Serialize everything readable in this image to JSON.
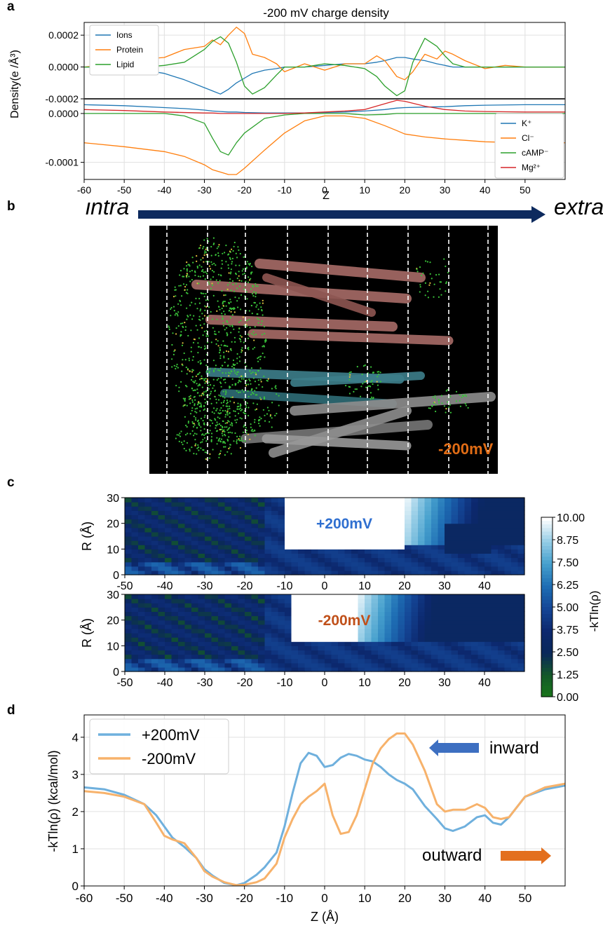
{
  "panel_labels": {
    "a": "a",
    "b": "b",
    "c": "c",
    "d": "d"
  },
  "colors": {
    "blue": "#1f77b4",
    "orange": "#ff7f0e",
    "green": "#2ca02c",
    "red": "#d62728",
    "light_blue": "#6fb0dd",
    "light_orange": "#f7b26b",
    "orange_text": "#e06c15",
    "navy": "#0d2a5e"
  },
  "panel_b": {
    "left_label": "intra",
    "right_label": "extra",
    "voltage_label": "-200mV",
    "image_description_icon": "protein-structure-image"
  },
  "chart_data": [
    {
      "type": "line",
      "id": "a-top",
      "title": "-200 mV charge density",
      "ylabel": "Density(e /Å³)",
      "xlabel": "Z",
      "xlim": [
        -60,
        60
      ],
      "ylim": [
        -0.0002,
        0.00028
      ],
      "yticks": [
        "0.0002",
        "0.0000",
        "-0.0002"
      ],
      "ytick_values": [
        0.0002,
        0.0,
        -0.0002
      ],
      "legend": "top-left",
      "x": [
        -60,
        -55,
        -50,
        -45,
        -40,
        -35,
        -30,
        -28,
        -26,
        -24,
        -22,
        -20,
        -18,
        -15,
        -12,
        -10,
        -5,
        0,
        5,
        10,
        13,
        15,
        18,
        20,
        22,
        25,
        28,
        30,
        32,
        35,
        40,
        45,
        50,
        55,
        60
      ],
      "series": [
        {
          "name": "Ions",
          "color": "#1f77b4",
          "values": [
            0,
            0,
            -1e-05,
            -2e-05,
            -4e-05,
            -8e-05,
            -0.00013,
            -0.00015,
            -0.00017,
            -0.00014,
            -0.0001,
            -7e-05,
            -4e-05,
            -2e-05,
            -1e-05,
            0,
            0,
            1e-05,
            2e-05,
            2e-05,
            3e-05,
            4e-05,
            6e-05,
            6e-05,
            5e-05,
            4e-05,
            2e-05,
            1e-05,
            0,
            0,
            0,
            0,
            0,
            0,
            0
          ]
        },
        {
          "name": "Protein",
          "color": "#ff7f0e",
          "values": [
            0,
            1e-05,
            2e-05,
            5e-05,
            6e-05,
            0.00011,
            0.00013,
            0.00017,
            0.00014,
            0.0002,
            0.00025,
            0.00021,
            8e-05,
            6e-05,
            2e-05,
            -3e-05,
            2e-05,
            -2e-05,
            2e-05,
            2e-05,
            7e-05,
            4e-05,
            -6e-05,
            -8e-05,
            -3e-05,
            8e-05,
            5e-05,
            0.0001,
            8e-05,
            4e-05,
            -1e-05,
            1e-05,
            0,
            0,
            0
          ]
        },
        {
          "name": "Lipid",
          "color": "#2ca02c",
          "values": [
            0,
            0,
            0,
            0,
            1e-05,
            3e-05,
            0.00011,
            0.00016,
            0.00019,
            0.00015,
            3e-05,
            -0.00012,
            -0.00017,
            -0.00013,
            -5e-05,
            0,
            0,
            2e-05,
            1e-05,
            -1e-05,
            -6e-05,
            -0.00012,
            -0.00018,
            -0.00015,
            3e-05,
            0.00018,
            0.00013,
            7e-05,
            2e-05,
            0,
            0,
            0,
            0,
            0,
            0
          ]
        }
      ]
    },
    {
      "type": "line",
      "id": "a-bottom",
      "xlabel": "Z",
      "xlim": [
        -60,
        60
      ],
      "ylim": [
        -0.000135,
        3e-05
      ],
      "yticks": [
        "0.0000",
        "-0.0001"
      ],
      "ytick_values": [
        0.0,
        -0.0001
      ],
      "xticks": [
        -60,
        -50,
        -40,
        -30,
        -20,
        -10,
        0,
        10,
        20,
        30,
        40,
        50
      ],
      "legend": "bottom-right",
      "x": [
        -60,
        -50,
        -40,
        -35,
        -30,
        -28,
        -26,
        -24,
        -22,
        -20,
        -15,
        -10,
        -5,
        0,
        5,
        10,
        15,
        18,
        20,
        25,
        30,
        35,
        40,
        50,
        60
      ],
      "series": [
        {
          "name": "K⁺",
          "color": "#1f77b4",
          "values": [
            1.8e-05,
            1.6e-05,
            1.2e-05,
            1e-05,
            7e-06,
            5e-06,
            4e-06,
            3e-06,
            3e-06,
            2e-06,
            1e-06,
            1e-06,
            1e-06,
            2e-06,
            3e-06,
            5e-06,
            8e-06,
            1.1e-05,
            1.2e-05,
            1.3e-05,
            1.4e-05,
            1.6e-05,
            1.7e-05,
            1.8e-05,
            1.8e-05
          ]
        },
        {
          "name": "Cl⁻",
          "color": "#ff7f0e",
          "values": [
            -6e-05,
            -6.8e-05,
            -7.8e-05,
            -8.8e-05,
            -0.000105,
            -0.000115,
            -0.00012,
            -0.000125,
            -0.000125,
            -0.000112,
            -7.5e-05,
            -4e-05,
            -1.5e-05,
            -5e-06,
            -5e-06,
            -1e-05,
            -2.5e-05,
            -3.5e-05,
            -4.2e-05,
            -4.8e-05,
            -5.2e-05,
            -5.5e-05,
            -5.8e-05,
            -6e-05,
            -6e-05
          ]
        },
        {
          "name": "cAMP⁻",
          "color": "#2ca02c",
          "values": [
            0,
            0,
            0,
            -5e-06,
            -2e-05,
            -5e-05,
            -7.8e-05,
            -8.5e-05,
            -6e-05,
            -4e-05,
            -1e-05,
            -3e-06,
            0,
            0,
            0,
            -3e-06,
            -2e-06,
            0,
            0,
            0,
            0,
            0,
            0,
            0,
            0
          ]
        },
        {
          "name": "Mg²⁺",
          "color": "#d62728",
          "values": [
            8e-06,
            6e-06,
            3e-06,
            2e-06,
            1e-06,
            1e-06,
            0,
            0,
            0,
            0,
            0,
            0,
            1e-06,
            3e-06,
            5e-06,
            8e-06,
            2e-05,
            2.7e-05,
            2.5e-05,
            1.5e-05,
            8e-06,
            5e-06,
            4e-06,
            3e-06,
            3e-06
          ]
        }
      ]
    },
    {
      "type": "heatmap",
      "id": "c-top",
      "annotation": "+200mV",
      "ylabel": "R (Å)",
      "xlim": [
        -50,
        50
      ],
      "ylim": [
        0,
        30
      ],
      "xticks": [
        -50,
        -40,
        -30,
        -20,
        -10,
        0,
        10,
        20,
        30,
        40
      ],
      "yticks": [
        0,
        10,
        20,
        30
      ],
      "white_region": {
        "z_range": [
          -10,
          20
        ],
        "r_range": [
          10,
          30
        ]
      },
      "colorbar": {
        "label": "-kTln(ρ)",
        "ticks": [
          "10.00",
          "8.75",
          "7.50",
          "6.25",
          "5.00",
          "3.75",
          "2.50",
          "1.25",
          "0.00"
        ],
        "range": [
          0,
          10
        ]
      }
    },
    {
      "type": "heatmap",
      "id": "c-bottom",
      "annotation": "-200mV",
      "ylabel": "R (Å)",
      "xlim": [
        -50,
        50
      ],
      "ylim": [
        0,
        30
      ],
      "xticks": [
        -50,
        -40,
        -30,
        -20,
        -10,
        0,
        10,
        20,
        30,
        40
      ],
      "yticks": [
        0,
        10,
        20,
        30
      ],
      "white_region": {
        "z_range": [
          -8,
          8
        ],
        "r_range": [
          12,
          30
        ]
      }
    },
    {
      "type": "line",
      "id": "d",
      "xlabel": "Z (Å)",
      "ylabel": "-kTln(ρ) (kcal/mol)",
      "xlim": [
        -60,
        60
      ],
      "ylim": [
        0,
        4.6
      ],
      "xticks": [
        -60,
        -50,
        -40,
        -30,
        -20,
        -10,
        0,
        10,
        20,
        30,
        40,
        50
      ],
      "yticks": [
        0,
        1,
        2,
        3,
        4
      ],
      "legend": "top-left",
      "grid": true,
      "annotations": {
        "inward": "inward",
        "outward": "outward"
      },
      "x": [
        -60,
        -55,
        -50,
        -45,
        -42,
        -40,
        -38,
        -35,
        -32,
        -30,
        -28,
        -25,
        -22,
        -20,
        -17,
        -15,
        -12,
        -10,
        -8,
        -6,
        -4,
        -2,
        0,
        2,
        4,
        6,
        8,
        10,
        12,
        14,
        16,
        18,
        20,
        22,
        25,
        28,
        30,
        32,
        35,
        38,
        40,
        42,
        44,
        46,
        50,
        55,
        60
      ],
      "series": [
        {
          "name": "+200mV",
          "color": "#6fb0dd",
          "values": [
            2.65,
            2.6,
            2.45,
            2.2,
            1.9,
            1.6,
            1.3,
            1.05,
            0.75,
            0.45,
            0.28,
            0.08,
            0.02,
            0.08,
            0.3,
            0.5,
            0.9,
            1.6,
            2.5,
            3.3,
            3.58,
            3.5,
            3.2,
            3.25,
            3.45,
            3.55,
            3.5,
            3.4,
            3.35,
            3.2,
            3.0,
            2.85,
            2.75,
            2.6,
            2.15,
            1.8,
            1.55,
            1.48,
            1.6,
            1.85,
            1.9,
            1.7,
            1.65,
            1.85,
            2.4,
            2.6,
            2.7
          ]
        },
        {
          "name": "-200mV",
          "color": "#f7b26b",
          "values": [
            2.55,
            2.5,
            2.4,
            2.2,
            1.7,
            1.35,
            1.25,
            1.15,
            0.75,
            0.4,
            0.25,
            0.1,
            0.02,
            0.03,
            0.1,
            0.2,
            0.6,
            1.3,
            1.8,
            2.2,
            2.4,
            2.55,
            2.75,
            1.9,
            1.4,
            1.45,
            1.9,
            2.6,
            3.3,
            3.7,
            3.95,
            4.1,
            4.1,
            3.8,
            3.1,
            2.2,
            2.0,
            2.05,
            2.05,
            2.2,
            2.1,
            1.85,
            1.8,
            1.85,
            2.4,
            2.65,
            2.75
          ]
        }
      ]
    }
  ]
}
